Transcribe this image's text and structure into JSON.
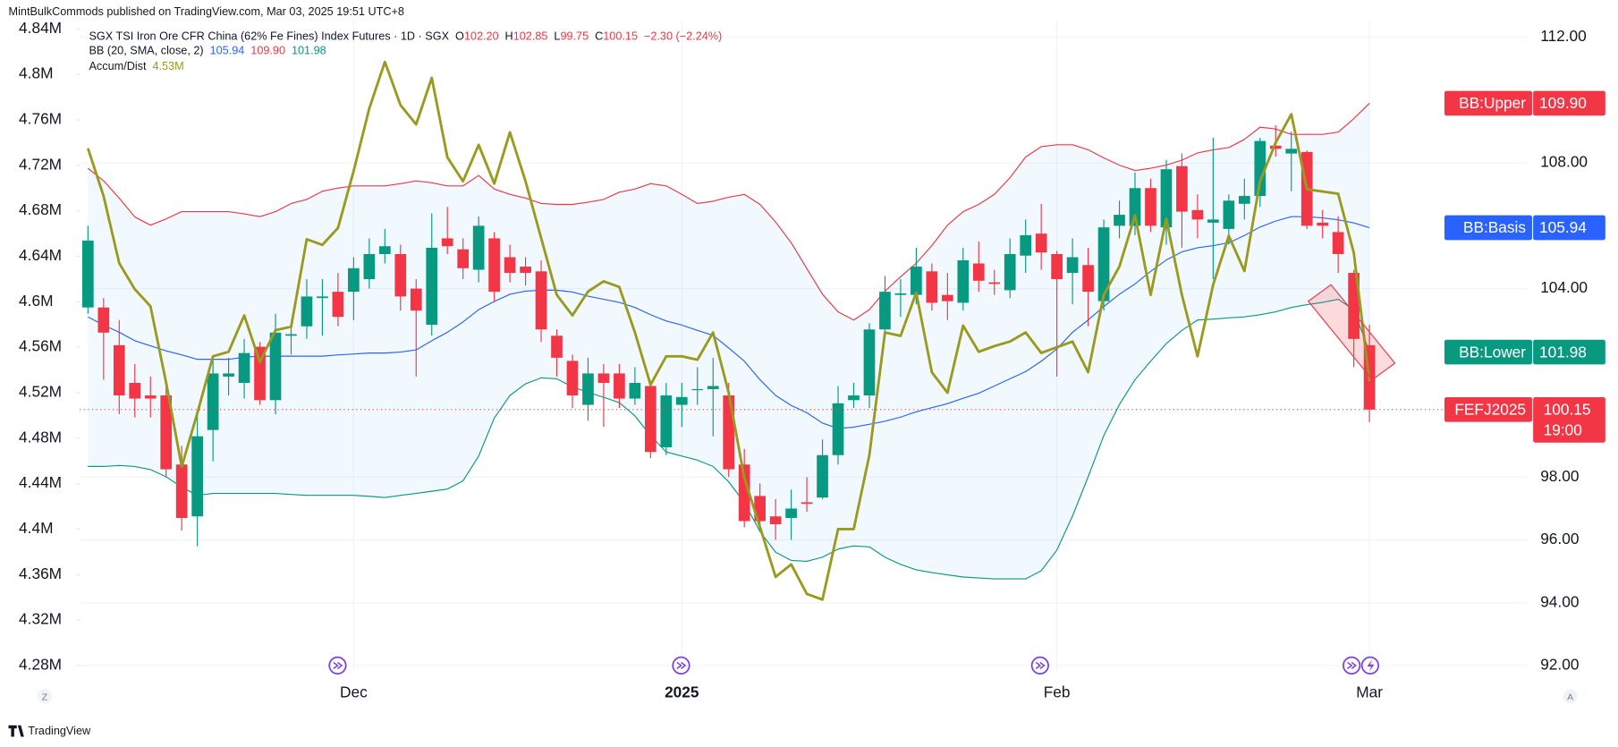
{
  "header": {
    "publisher": "MintBulkCommods published on TradingView.com, Mar 03, 2025 19:51 UTC+8"
  },
  "footer": {
    "brand": "TradingView"
  },
  "corner_buttons": [
    "Z",
    "A"
  ],
  "chart_data": {
    "type": "candlestick",
    "title": "SGX TSI Iron Ore CFR China (62% Fe Fines) Index Futures · 1D · SGX",
    "ohlc_legend": [
      {
        "key": "O",
        "text": "102.20"
      },
      {
        "key": "H",
        "text": "102.85"
      },
      {
        "key": "L",
        "text": "99.75"
      },
      {
        "key": "C",
        "text": "100.15"
      }
    ],
    "change": "−2.30 (−2.24%)",
    "indicators": [
      {
        "title": "BB (20, SMA, close, 2)",
        "readings": [
          {
            "text": "105.94",
            "color": "#2962ff"
          },
          {
            "text": "109.90",
            "color": "#f23645"
          },
          {
            "text": "101.98",
            "color": "#089981"
          }
        ]
      },
      {
        "title": "Accum/Dist",
        "readings": [
          {
            "text": "4.53M",
            "color": "#9a9a1e"
          }
        ]
      }
    ],
    "symbol": "FEFJ2025",
    "last_price_label": "100.15",
    "countdown": "19:00",
    "up_color": "#089981",
    "down_color": "#f23645",
    "band_fill": "rgba(33,150,243,0.06)",
    "grid": true,
    "categories": [
      null,
      null,
      null,
      null,
      null,
      null,
      null,
      null,
      null,
      null,
      null,
      null,
      null,
      null,
      null,
      null,
      null,
      "Dec",
      null,
      null,
      null,
      null,
      null,
      null,
      null,
      null,
      null,
      null,
      null,
      null,
      null,
      null,
      null,
      null,
      null,
      null,
      null,
      null,
      "2025",
      null,
      null,
      null,
      null,
      null,
      null,
      null,
      null,
      null,
      null,
      null,
      null,
      null,
      null,
      null,
      null,
      null,
      null,
      null,
      null,
      null,
      null,
      null,
      "Feb",
      null,
      null,
      null,
      null,
      null,
      null,
      null,
      null,
      null,
      null,
      null,
      null,
      null,
      null,
      null,
      null,
      null,
      null,
      null,
      "Mar"
    ],
    "open": [
      103.4,
      103.4,
      102.2,
      101.0,
      100.6,
      100.6,
      98.4,
      96.75,
      99.5,
      101.2,
      101.0,
      102.15,
      100.45,
      102.5,
      102.8,
      103.7,
      103.9,
      103.9,
      104.3,
      105.1,
      105.1,
      104.0,
      102.85,
      105.6,
      105.25,
      104.6,
      105.6,
      105.0,
      104.7,
      104.55,
      102.5,
      101.7,
      100.3,
      101.3,
      101.3,
      100.5,
      100.9,
      98.95,
      100.3,
      100.8,
      100.8,
      100.6,
      98.4,
      97.4,
      96.75,
      96.7,
      97.2,
      97.35,
      98.7,
      100.45,
      100.6,
      102.7,
      103.8,
      103.8,
      104.55,
      103.8,
      103.55,
      104.8,
      104.2,
      103.95,
      105.05,
      105.75,
      105.1,
      104.5,
      104.75,
      103.6,
      106.0,
      106.0,
      107.2,
      105.95,
      107.9,
      106.5,
      106.1,
      105.9,
      106.7,
      106.95,
      108.55,
      108.3,
      108.35,
      106.1,
      105.8,
      104.5,
      102.2
    ],
    "high": [
      106.0,
      103.7,
      103.0,
      101.6,
      101.2,
      101.0,
      99.0,
      100.1,
      101.8,
      101.8,
      102.4,
      102.3,
      103.2,
      102.9,
      104.3,
      104.3,
      104.5,
      105.0,
      105.6,
      105.9,
      105.4,
      104.3,
      106.4,
      106.6,
      105.6,
      106.3,
      105.8,
      105.4,
      105.0,
      104.9,
      102.7,
      101.9,
      101.8,
      101.6,
      101.6,
      101.5,
      101.0,
      101.0,
      101.0,
      101.5,
      101.8,
      101.0,
      98.9,
      97.8,
      97.3,
      97.6,
      98.0,
      99.2,
      100.9,
      101.0,
      102.9,
      104.4,
      104.3,
      105.3,
      104.8,
      104.5,
      105.3,
      105.5,
      104.6,
      105.6,
      106.2,
      106.7,
      105.2,
      105.6,
      105.3,
      106.2,
      106.8,
      107.7,
      107.5,
      108.1,
      108.3,
      107.0,
      108.8,
      107.0,
      107.5,
      108.8,
      109.2,
      109.0,
      108.4,
      106.5,
      106.3,
      104.6,
      102.85
    ],
    "low": [
      103.2,
      101.1,
      100.0,
      99.9,
      99.9,
      98.0,
      96.3,
      95.8,
      98.5,
      100.6,
      100.5,
      100.3,
      100.0,
      101.9,
      102.4,
      102.5,
      102.8,
      103.0,
      104.0,
      104.8,
      103.3,
      101.2,
      102.5,
      105.1,
      104.3,
      104.2,
      103.6,
      104.2,
      104.1,
      102.3,
      101.2,
      100.2,
      99.8,
      99.6,
      100.2,
      100.3,
      98.6,
      98.7,
      99.6,
      100.3,
      99.3,
      98.0,
      96.4,
      96.3,
      96.0,
      96.0,
      96.9,
      97.3,
      98.4,
      100.2,
      100.2,
      102.4,
      103.1,
      103.5,
      103.3,
      103.0,
      103.3,
      103.9,
      103.8,
      103.7,
      104.5,
      104.6,
      101.2,
      103.5,
      102.8,
      103.3,
      105.6,
      105.7,
      105.8,
      105.4,
      105.3,
      105.6,
      104.3,
      105.4,
      106.2,
      106.6,
      108.2,
      107.1,
      105.9,
      105.6,
      104.5,
      101.5,
      99.75
    ],
    "close": [
      105.53,
      102.6,
      100.6,
      100.5,
      100.5,
      98.25,
      96.7,
      99.3,
      101.3,
      101.3,
      101.95,
      100.45,
      102.6,
      102.55,
      103.75,
      103.75,
      103.1,
      104.65,
      105.1,
      105.35,
      103.75,
      103.3,
      105.3,
      105.35,
      104.65,
      106.0,
      103.9,
      104.5,
      104.5,
      102.7,
      101.8,
      100.6,
      101.3,
      101.0,
      100.5,
      101.0,
      98.8,
      100.6,
      100.55,
      100.8,
      100.9,
      98.25,
      96.6,
      96.6,
      96.5,
      97.0,
      97.15,
      98.7,
      100.35,
      100.6,
      102.7,
      103.9,
      103.85,
      104.7,
      103.55,
      103.6,
      104.9,
      104.25,
      104.15,
      105.1,
      105.7,
      105.15,
      104.3,
      105.0,
      103.9,
      105.95,
      106.35,
      107.2,
      106.0,
      107.8,
      106.45,
      106.2,
      106.2,
      106.8,
      106.95,
      108.7,
      108.45,
      108.45,
      106.0,
      106.0,
      105.1,
      102.4,
      100.15
    ],
    "series": [
      {
        "name": "BB:Upper",
        "color": "#f23645",
        "last_label": "109.90",
        "values": [
          107.83,
          107.43,
          106.88,
          106.28,
          106.02,
          106.22,
          106.45,
          106.45,
          106.45,
          106.45,
          106.38,
          106.29,
          106.45,
          106.71,
          106.84,
          107.1,
          107.2,
          107.27,
          107.27,
          107.27,
          107.34,
          107.43,
          107.37,
          107.27,
          107.27,
          107.6,
          107.17,
          107.0,
          106.88,
          106.71,
          106.68,
          106.68,
          106.75,
          106.84,
          107.07,
          107.17,
          107.34,
          107.27,
          107.0,
          106.71,
          106.78,
          106.91,
          107.0,
          106.68,
          106.12,
          105.46,
          104.64,
          103.82,
          103.26,
          103.0,
          103.33,
          103.92,
          104.38,
          104.81,
          105.37,
          106.02,
          106.45,
          106.68,
          107.0,
          107.53,
          108.19,
          108.52,
          108.58,
          108.58,
          108.42,
          108.16,
          107.93,
          107.76,
          107.83,
          107.93,
          108.09,
          108.32,
          108.42,
          108.49,
          108.75,
          109.14,
          109.08,
          108.91,
          108.91,
          108.91,
          108.98,
          109.41,
          109.9
        ]
      },
      {
        "name": "BB:Basis",
        "color": "#2962ff",
        "last_label": "105.94",
        "values": [
          103.1,
          102.84,
          102.61,
          102.34,
          102.18,
          102.02,
          101.89,
          101.75,
          101.75,
          101.75,
          101.82,
          101.85,
          101.85,
          101.85,
          101.85,
          101.85,
          101.89,
          101.92,
          101.95,
          101.95,
          101.98,
          102.05,
          102.34,
          102.61,
          102.94,
          103.33,
          103.59,
          103.82,
          103.92,
          103.95,
          103.95,
          103.89,
          103.76,
          103.66,
          103.56,
          103.4,
          103.17,
          102.97,
          102.84,
          102.67,
          102.51,
          102.11,
          101.69,
          101.1,
          100.6,
          100.28,
          100.05,
          99.72,
          99.55,
          99.59,
          99.68,
          99.78,
          99.91,
          100.08,
          100.21,
          100.34,
          100.51,
          100.67,
          100.9,
          101.13,
          101.36,
          101.69,
          102.08,
          102.61,
          103.0,
          103.43,
          103.82,
          104.15,
          104.55,
          104.91,
          105.17,
          105.3,
          105.37,
          105.46,
          105.69,
          105.96,
          106.15,
          106.29,
          106.29,
          106.25,
          106.19,
          106.09,
          105.94
        ]
      },
      {
        "name": "BB:Lower",
        "color": "#089981",
        "last_label": "101.98",
        "values": [
          98.34,
          98.34,
          98.37,
          98.34,
          98.24,
          98.01,
          97.68,
          97.42,
          97.48,
          97.48,
          97.48,
          97.48,
          97.48,
          97.45,
          97.42,
          97.42,
          97.42,
          97.42,
          97.39,
          97.35,
          97.42,
          97.48,
          97.55,
          97.62,
          97.88,
          98.67,
          99.88,
          100.6,
          100.97,
          101.16,
          101.13,
          100.87,
          100.7,
          100.54,
          100.37,
          99.95,
          99.32,
          98.8,
          98.67,
          98.54,
          98.34,
          97.85,
          97.19,
          96.27,
          95.61,
          95.35,
          95.32,
          95.45,
          95.71,
          95.81,
          95.78,
          95.45,
          95.22,
          95.05,
          94.96,
          94.89,
          94.82,
          94.79,
          94.76,
          94.76,
          94.76,
          95.02,
          95.68,
          96.76,
          98.01,
          99.32,
          100.31,
          101.1,
          101.69,
          102.25,
          102.67,
          103.0,
          103.03,
          103.07,
          103.1,
          103.17,
          103.26,
          103.4,
          103.49,
          103.56,
          103.66,
          103.33,
          101.98
        ]
      },
      {
        "name": "Accum/Dist",
        "color": "#9a9a1e",
        "axis": "y2",
        "values": [
          4.735,
          4.693,
          4.634,
          4.611,
          4.596,
          4.529,
          4.455,
          4.502,
          4.552,
          4.556,
          4.588,
          4.547,
          4.575,
          4.578,
          4.655,
          4.65,
          4.665,
          4.715,
          4.77,
          4.811,
          4.773,
          4.756,
          4.797,
          4.727,
          4.706,
          4.738,
          4.704,
          4.749,
          4.706,
          4.656,
          4.606,
          4.588,
          4.609,
          4.618,
          4.613,
          4.573,
          4.527,
          4.552,
          4.552,
          4.549,
          4.573,
          4.52,
          4.445,
          4.402,
          4.358,
          4.369,
          4.343,
          4.338,
          4.4,
          4.4,
          4.465,
          4.573,
          4.57,
          4.608,
          4.538,
          4.52,
          4.579,
          4.556,
          4.561,
          4.565,
          4.573,
          4.555,
          4.56,
          4.565,
          4.538,
          4.606,
          4.631,
          4.676,
          4.606,
          4.673,
          4.606,
          4.552,
          4.615,
          4.658,
          4.627,
          4.706,
          4.74,
          4.765,
          4.699,
          4.697,
          4.695,
          4.643,
          4.53
        ]
      }
    ],
    "ylim": [
      91.84,
      112.53
    ],
    "yticks": [
      {
        "value": 112,
        "label": "112.00"
      },
      {
        "value": 108,
        "label": "108.00"
      },
      {
        "value": 104,
        "label": "104.00"
      },
      {
        "value": 98,
        "label": "98.00"
      },
      {
        "value": 96,
        "label": "96.00"
      },
      {
        "value": 94,
        "label": "94.00"
      },
      {
        "value": 92,
        "label": "92.00"
      }
    ],
    "y2lim": [
      4.2755,
      4.8473
    ],
    "y2ticks": [
      {
        "value": 4.84,
        "label": "4.84M"
      },
      {
        "value": 4.8,
        "label": "4.8M"
      },
      {
        "value": 4.76,
        "label": "4.76M"
      },
      {
        "value": 4.72,
        "label": "4.72M"
      },
      {
        "value": 4.68,
        "label": "4.68M"
      },
      {
        "value": 4.64,
        "label": "4.64M"
      },
      {
        "value": 4.6,
        "label": "4.6M"
      },
      {
        "value": 4.56,
        "label": "4.56M"
      },
      {
        "value": 4.52,
        "label": "4.52M"
      },
      {
        "value": 4.48,
        "label": "4.48M"
      },
      {
        "value": 4.44,
        "label": "4.44M"
      },
      {
        "value": 4.4,
        "label": "4.4M"
      },
      {
        "value": 4.36,
        "label": "4.36M"
      },
      {
        "value": 4.32,
        "label": "4.32M"
      },
      {
        "value": 4.28,
        "label": "4.28M"
      }
    ]
  }
}
